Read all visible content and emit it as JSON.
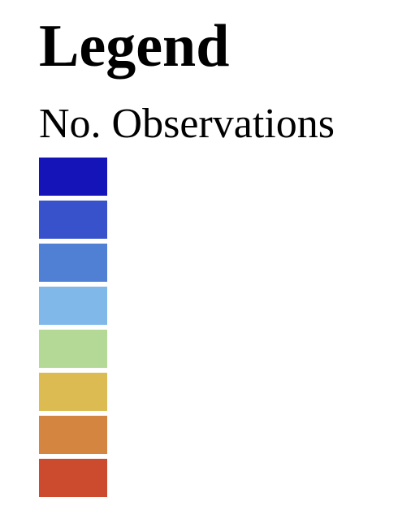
{
  "legend": {
    "title": "Legend",
    "subtitle": "No. Observations",
    "swatches": [
      {
        "color": "#1414b8"
      },
      {
        "color": "#3852cc"
      },
      {
        "color": "#5080d4"
      },
      {
        "color": "#80b8ea"
      },
      {
        "color": "#b4d896"
      },
      {
        "color": "#dcbc52"
      },
      {
        "color": "#d48640"
      },
      {
        "color": "#cc4a2e"
      }
    ]
  }
}
